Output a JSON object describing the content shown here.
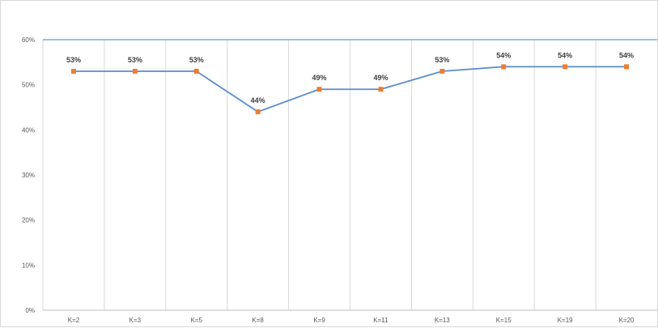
{
  "chart_data": {
    "type": "line",
    "title": "",
    "xlabel": "",
    "ylabel": "",
    "categories": [
      "K=2",
      "K=3",
      "K=5",
      "K=8",
      "K=9",
      "K=11",
      "K=13",
      "K=15",
      "K=19",
      "K=20"
    ],
    "series": [
      {
        "values": [
          0.53,
          0.53,
          0.53,
          0.44,
          0.49,
          0.49,
          0.53,
          0.54,
          0.54,
          0.54
        ],
        "labels": [
          "53%",
          "53%",
          "53%",
          "44%",
          "49%",
          "49%",
          "53%",
          "54%",
          "54%",
          "54%"
        ]
      }
    ],
    "ylim": [
      0,
      0.6
    ],
    "yticks": [
      "0%",
      "10%",
      "20%",
      "30%",
      "40%",
      "50%",
      "60%"
    ],
    "grid": "vertical category separators",
    "legend": "none",
    "colors": {
      "line": "#5b8bc9",
      "marker": "#ed7d31",
      "top_line": "#5b9bd5",
      "grid": "#d9d9d9",
      "axis": "#bfbfbf"
    }
  }
}
